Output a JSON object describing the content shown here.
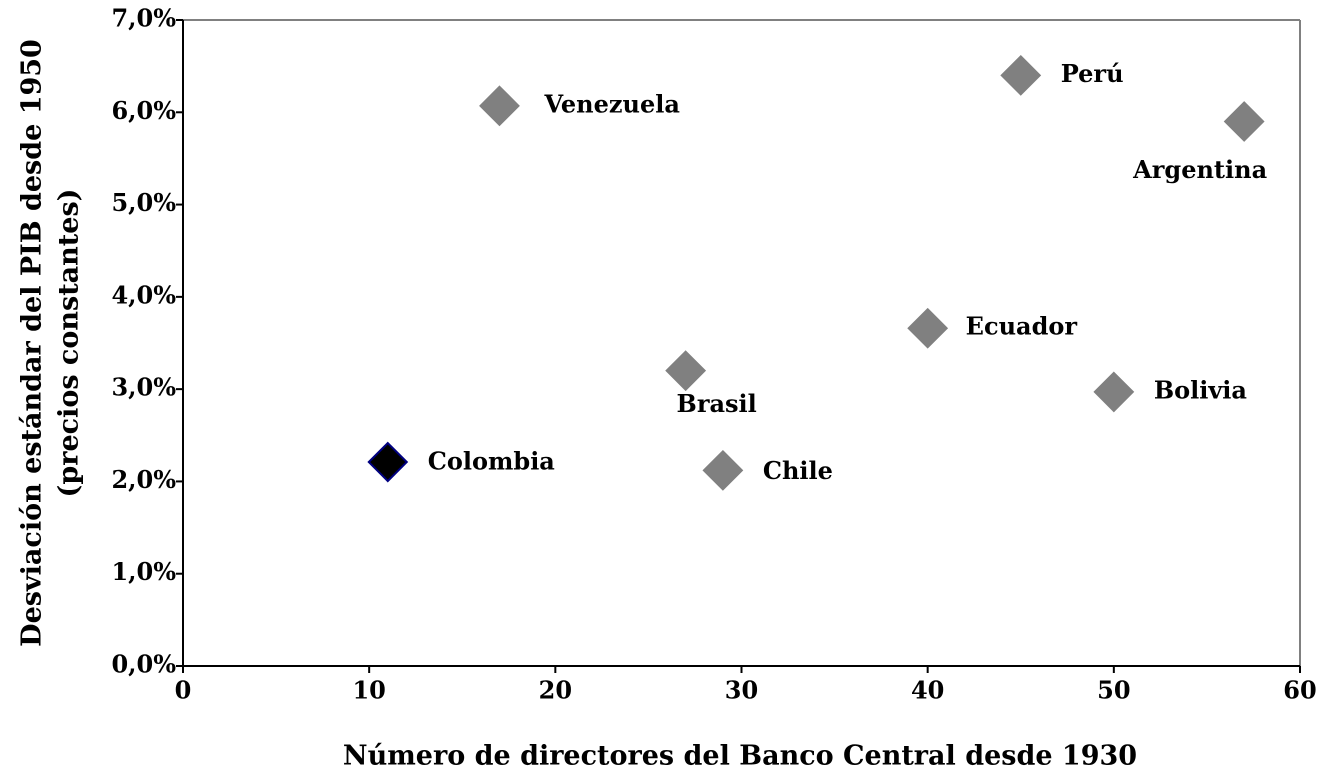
{
  "chart_data": {
    "type": "scatter",
    "x_label": "Número de directores del Banco Central desde 1930",
    "y_label": [
      "Desviación estándar del PIB desde 1950",
      "(precios constantes)"
    ],
    "labels": [
      "Venezuela",
      "Perú",
      "Argentina",
      "Ecuador",
      "Brasil",
      "Bolivia",
      "Colombia",
      "Chile"
    ],
    "x": [
      17,
      45,
      57,
      40,
      27,
      50,
      11,
      29
    ],
    "values": [
      6.07,
      6.4,
      5.9,
      3.66,
      3.2,
      2.97,
      2.21,
      2.12
    ],
    "colors": [
      "#808080",
      "#808080",
      "#808080",
      "#808080",
      "#808080",
      "#808080",
      "#000000",
      "#808080"
    ],
    "edge_colors": [
      "#808080",
      "#808080",
      "#808080",
      "#808080",
      "#808080",
      "#808080",
      "#000080",
      "#808080"
    ],
    "label_colors": [
      "#000000",
      "#000000",
      "#000000",
      "#000000",
      "#000000",
      "#000000",
      "#990033",
      "#000000"
    ],
    "xlim": [
      0,
      60
    ],
    "xticks": [
      0,
      10,
      20,
      30,
      40,
      50,
      60
    ],
    "ylim": [
      0,
      7
    ],
    "yticks": [
      {
        "value": 0,
        "label": "0,0%"
      },
      {
        "value": 1,
        "label": "1,0%"
      },
      {
        "value": 2,
        "label": "2,0%"
      },
      {
        "value": 3,
        "label": "3,0%"
      },
      {
        "value": 4,
        "label": "4,0%"
      },
      {
        "value": 5,
        "label": "5,0%"
      },
      {
        "value": 6,
        "label": "6,0%"
      },
      {
        "value": 7,
        "label": "7,0%"
      }
    ],
    "grid": false
  }
}
